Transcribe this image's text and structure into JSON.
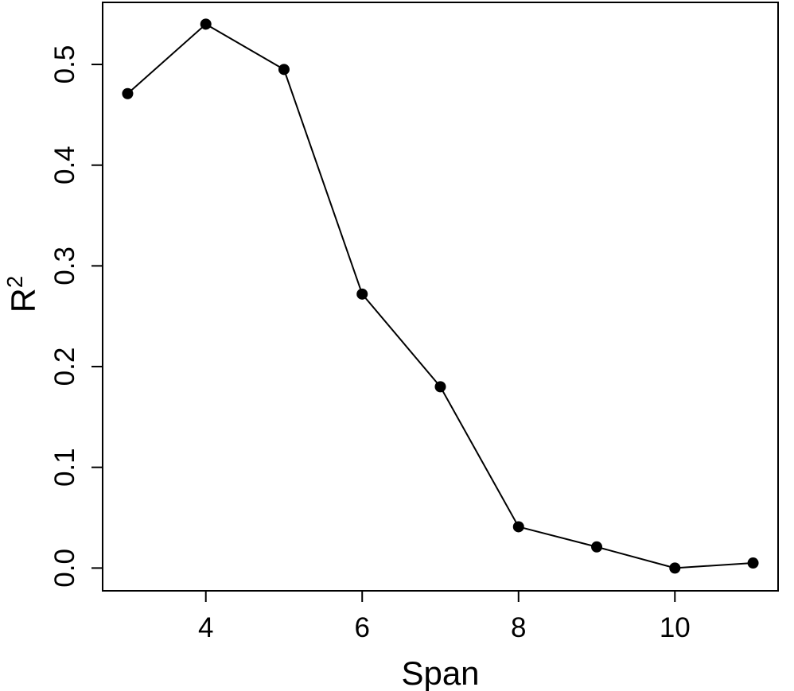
{
  "chart_data": {
    "type": "line",
    "x": [
      3,
      4,
      5,
      6,
      7,
      8,
      9,
      10,
      11
    ],
    "y": [
      0.471,
      0.54,
      0.495,
      0.272,
      0.18,
      0.041,
      0.021,
      0.0,
      0.005
    ],
    "xlabel": "Span",
    "ylabel_base": "R",
    "ylabel_sup": "2",
    "xticks": [
      4,
      6,
      8,
      10
    ],
    "xtick_labels": [
      "4",
      "6",
      "8",
      "10"
    ],
    "yticks": [
      0.0,
      0.1,
      0.2,
      0.3,
      0.4,
      0.5
    ],
    "ytick_labels": [
      "0.0",
      "0.1",
      "0.2",
      "0.3",
      "0.4",
      "0.5"
    ],
    "xlim": [
      2.68,
      11.32
    ],
    "ylim": [
      -0.0226,
      0.5616
    ],
    "grid": false,
    "legend": null,
    "title": "",
    "marker": "filled-circle",
    "marker_radius": 7,
    "line_width": 2,
    "line_color": "#000000",
    "axis_color": "#000000",
    "background_color": "#ffffff"
  }
}
